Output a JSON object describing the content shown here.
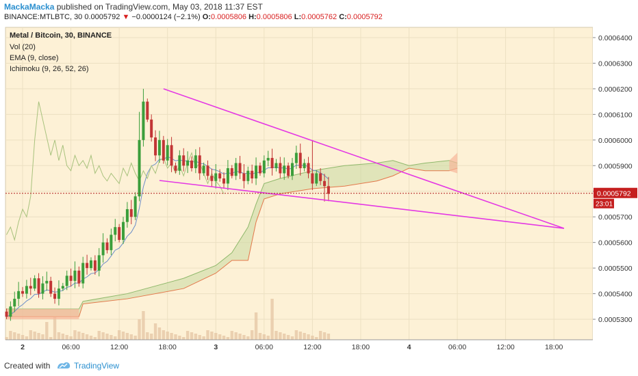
{
  "header": {
    "author": "MackaMacka",
    "published": "published on TradingView.com, May 03, 2018 11:37 EST",
    "symbol_interval": "BINANCE:MTLBTC, 30",
    "last": "0.0005792",
    "change": "−0.0000124 (−2.1%)",
    "o_label": "O:",
    "o_value": "0.0005806",
    "h_label": "H:",
    "h_value": "0.0005806",
    "l_label": "L:",
    "l_value": "0.0005762",
    "c_label": "C:",
    "c_value": "0.0005792"
  },
  "legend": {
    "title": "Metal / Bitcoin, 30, BINANCE",
    "vol": "Vol (20)",
    "ema": "EMA (9, close)",
    "ichimoku": "Ichimoku (9, 26, 52, 26)"
  },
  "price_badge": {
    "value": "0.0005792",
    "timer": "23:01"
  },
  "footer": {
    "created_with": "Created with",
    "brand": "TradingView"
  },
  "chart_data": {
    "type": "candlestick",
    "y_ticks": [
      "0.0006400",
      "0.0006300",
      "0.0006200",
      "0.0006100",
      "0.0006000",
      "0.0005900",
      "0.0005800",
      "0.0005700",
      "0.0005600",
      "0.0005500",
      "0.0005400",
      "0.0005300"
    ],
    "y_tick_values": [
      0.00064,
      0.00063,
      0.00062,
      0.00061,
      0.0006,
      0.00059,
      0.00058,
      0.00057,
      0.00056,
      0.00055,
      0.00054,
      0.00053
    ],
    "ylim": [
      0.000522,
      0.000644
    ],
    "x_ticks": [
      {
        "label": "2",
        "bar": 4,
        "bold": true
      },
      {
        "label": "06:00",
        "bar": 16
      },
      {
        "label": "12:00",
        "bar": 28
      },
      {
        "label": "18:00",
        "bar": 40
      },
      {
        "label": "3",
        "bar": 52,
        "bold": true
      },
      {
        "label": "06:00",
        "bar": 64
      },
      {
        "label": "12:00",
        "bar": 76
      },
      {
        "label": "18:00",
        "bar": 88
      },
      {
        "label": "4",
        "bar": 100,
        "bold": true
      },
      {
        "label": "06:00",
        "bar": 112
      },
      {
        "label": "12:00",
        "bar": 124
      },
      {
        "label": "18:00",
        "bar": 136
      }
    ],
    "candles_close": [
      0.000531,
      0.000535,
      0.000538,
      0.000541,
      0.00054,
      0.000543,
      0.000542,
      0.000546,
      0.00054,
      0.000544,
      0.000545,
      0.00054,
      0.000538,
      0.000542,
      0.000543,
      0.000547,
      0.000545,
      0.000549,
      0.000544,
      0.000552,
      0.00055,
      0.000553,
      0.000549,
      0.000555,
      0.00056,
      0.000557,
      0.000563,
      0.000566,
      0.000561,
      0.000568,
      0.000573,
      0.00057,
      0.000578,
      0.0006,
      0.000615,
      0.000608,
      0.000601,
      0.000594,
      0.0006,
      0.000592,
      0.000598,
      0.00059,
      0.000588,
      0.000594,
      0.00059,
      0.000592,
      0.000589,
      0.000594,
      0.000587,
      0.00059,
      0.000586,
      0.000584,
      0.000587,
      0.000585,
      0.000583,
      0.000589,
      0.000586,
      0.000591,
      0.000587,
      0.000584,
      0.000588,
      0.000585,
      0.00059,
      0.000587,
      0.000592,
      0.000593,
      0.000589,
      0.000591,
      0.000587,
      0.00059,
      0.000586,
      0.000591,
      0.000595,
      0.000589,
      0.000591,
      0.000587,
      0.000583,
      0.000587,
      0.000584,
      0.000582,
      0.000579
    ],
    "first_open": 0.000533,
    "pattern_lines": [
      {
        "from": [
          39,
          0.00062
        ],
        "to": [
          138.5,
          0.0005655
        ]
      },
      {
        "from": [
          38,
          0.0005842
        ],
        "to": [
          138.5,
          0.0005655
        ]
      }
    ],
    "last_price": 0.0005792
  }
}
